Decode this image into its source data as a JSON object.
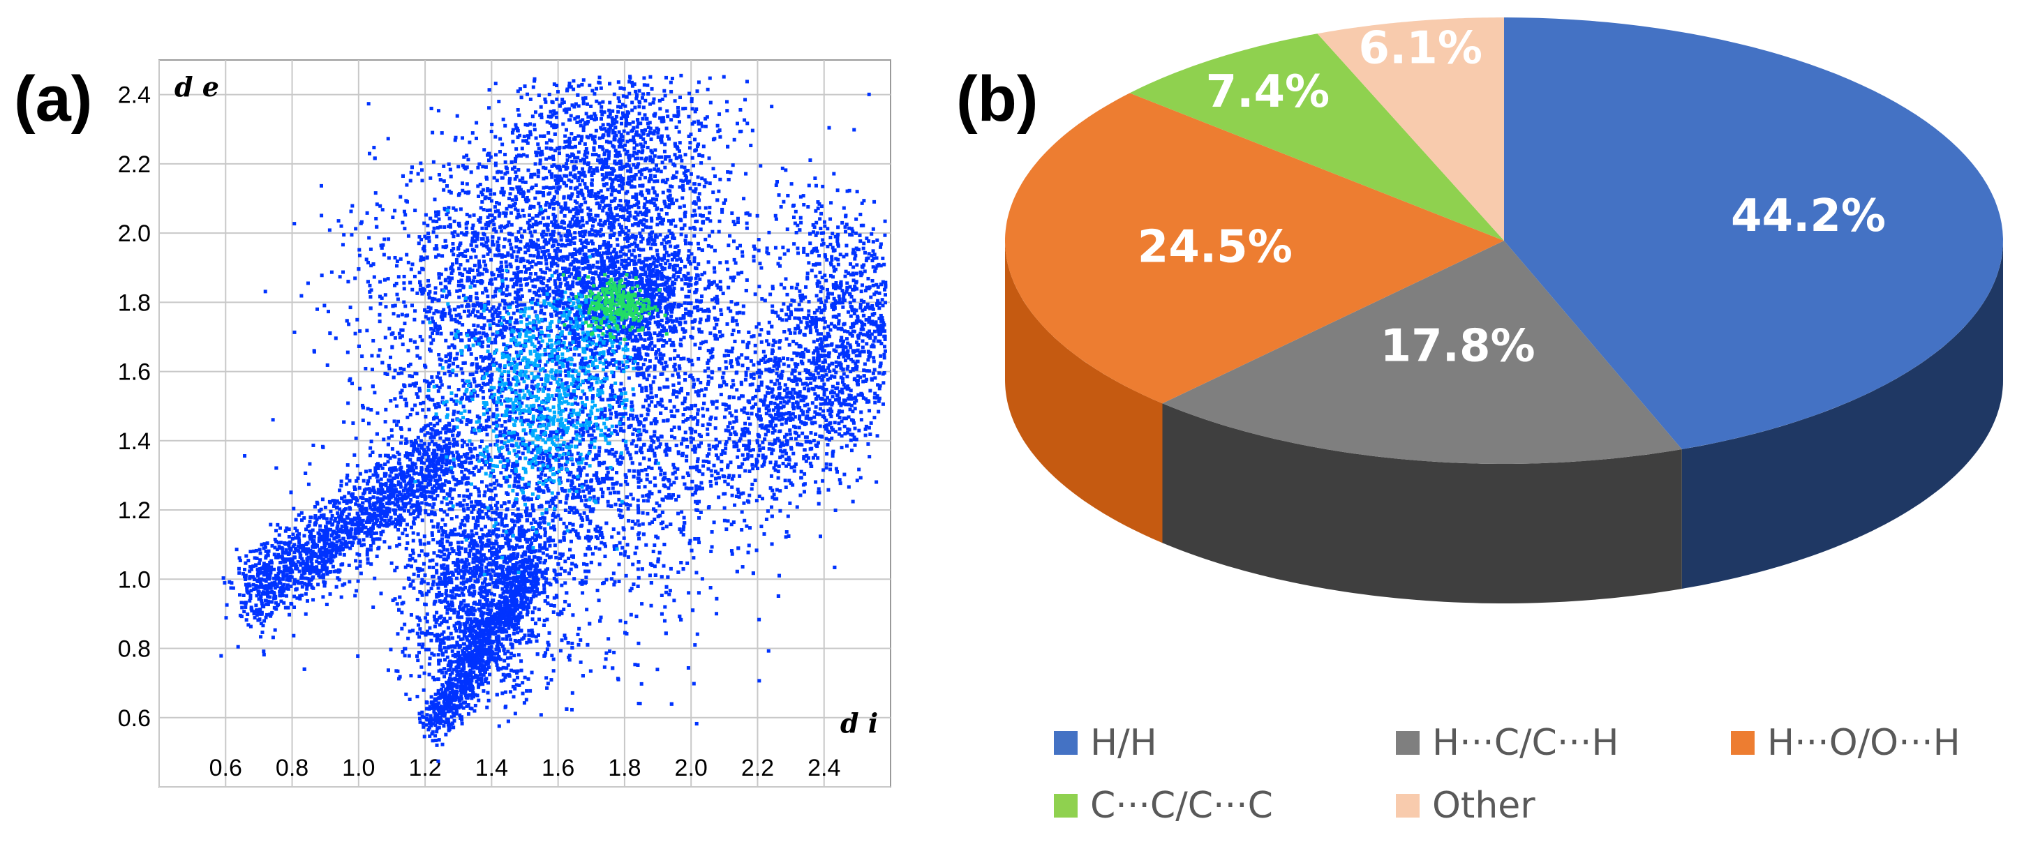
{
  "panel_a": {
    "label": "(a)",
    "chart_data": {
      "type": "scatter",
      "description_kind": "fingerprint-density",
      "xlabel": "d i",
      "ylabel": "d e",
      "xlim": [
        0.4,
        2.6
      ],
      "ylim": [
        0.4,
        2.5
      ],
      "xticks": [
        "0.6",
        "0.8",
        "1.0",
        "1.2",
        "1.4",
        "1.6",
        "1.8",
        "2.0",
        "2.2",
        "2.4"
      ],
      "yticks": [
        "0.6",
        "0.8",
        "1.0",
        "1.2",
        "1.4",
        "1.6",
        "1.8",
        "2.0",
        "2.2",
        "2.4"
      ],
      "grid": true,
      "colors": {
        "low": "#0033ff",
        "mid": "#00aaff",
        "high": "#22dd66"
      }
    }
  },
  "panel_b": {
    "label": "(b)",
    "chart_data": {
      "type": "pie",
      "categories": [
        "H/H",
        "H···C/C···H",
        "H···O/O···H",
        "C···C/C···C",
        "Other"
      ],
      "values": [
        44.2,
        17.8,
        24.5,
        7.4,
        6.1
      ],
      "labels": [
        "44.2%",
        "17.8%",
        "24.5%",
        "7.4%",
        "6.1%"
      ],
      "colors": [
        "#4472C4",
        "#7F7F7F",
        "#ED7D31",
        "#8FD14F",
        "#F8CBAD"
      ],
      "side_colors": [
        "#1F3864",
        "#3F3F3F",
        "#C55A11",
        "#548235",
        "#C9A48B"
      ],
      "style": "3d",
      "legend_position": "bottom"
    }
  }
}
